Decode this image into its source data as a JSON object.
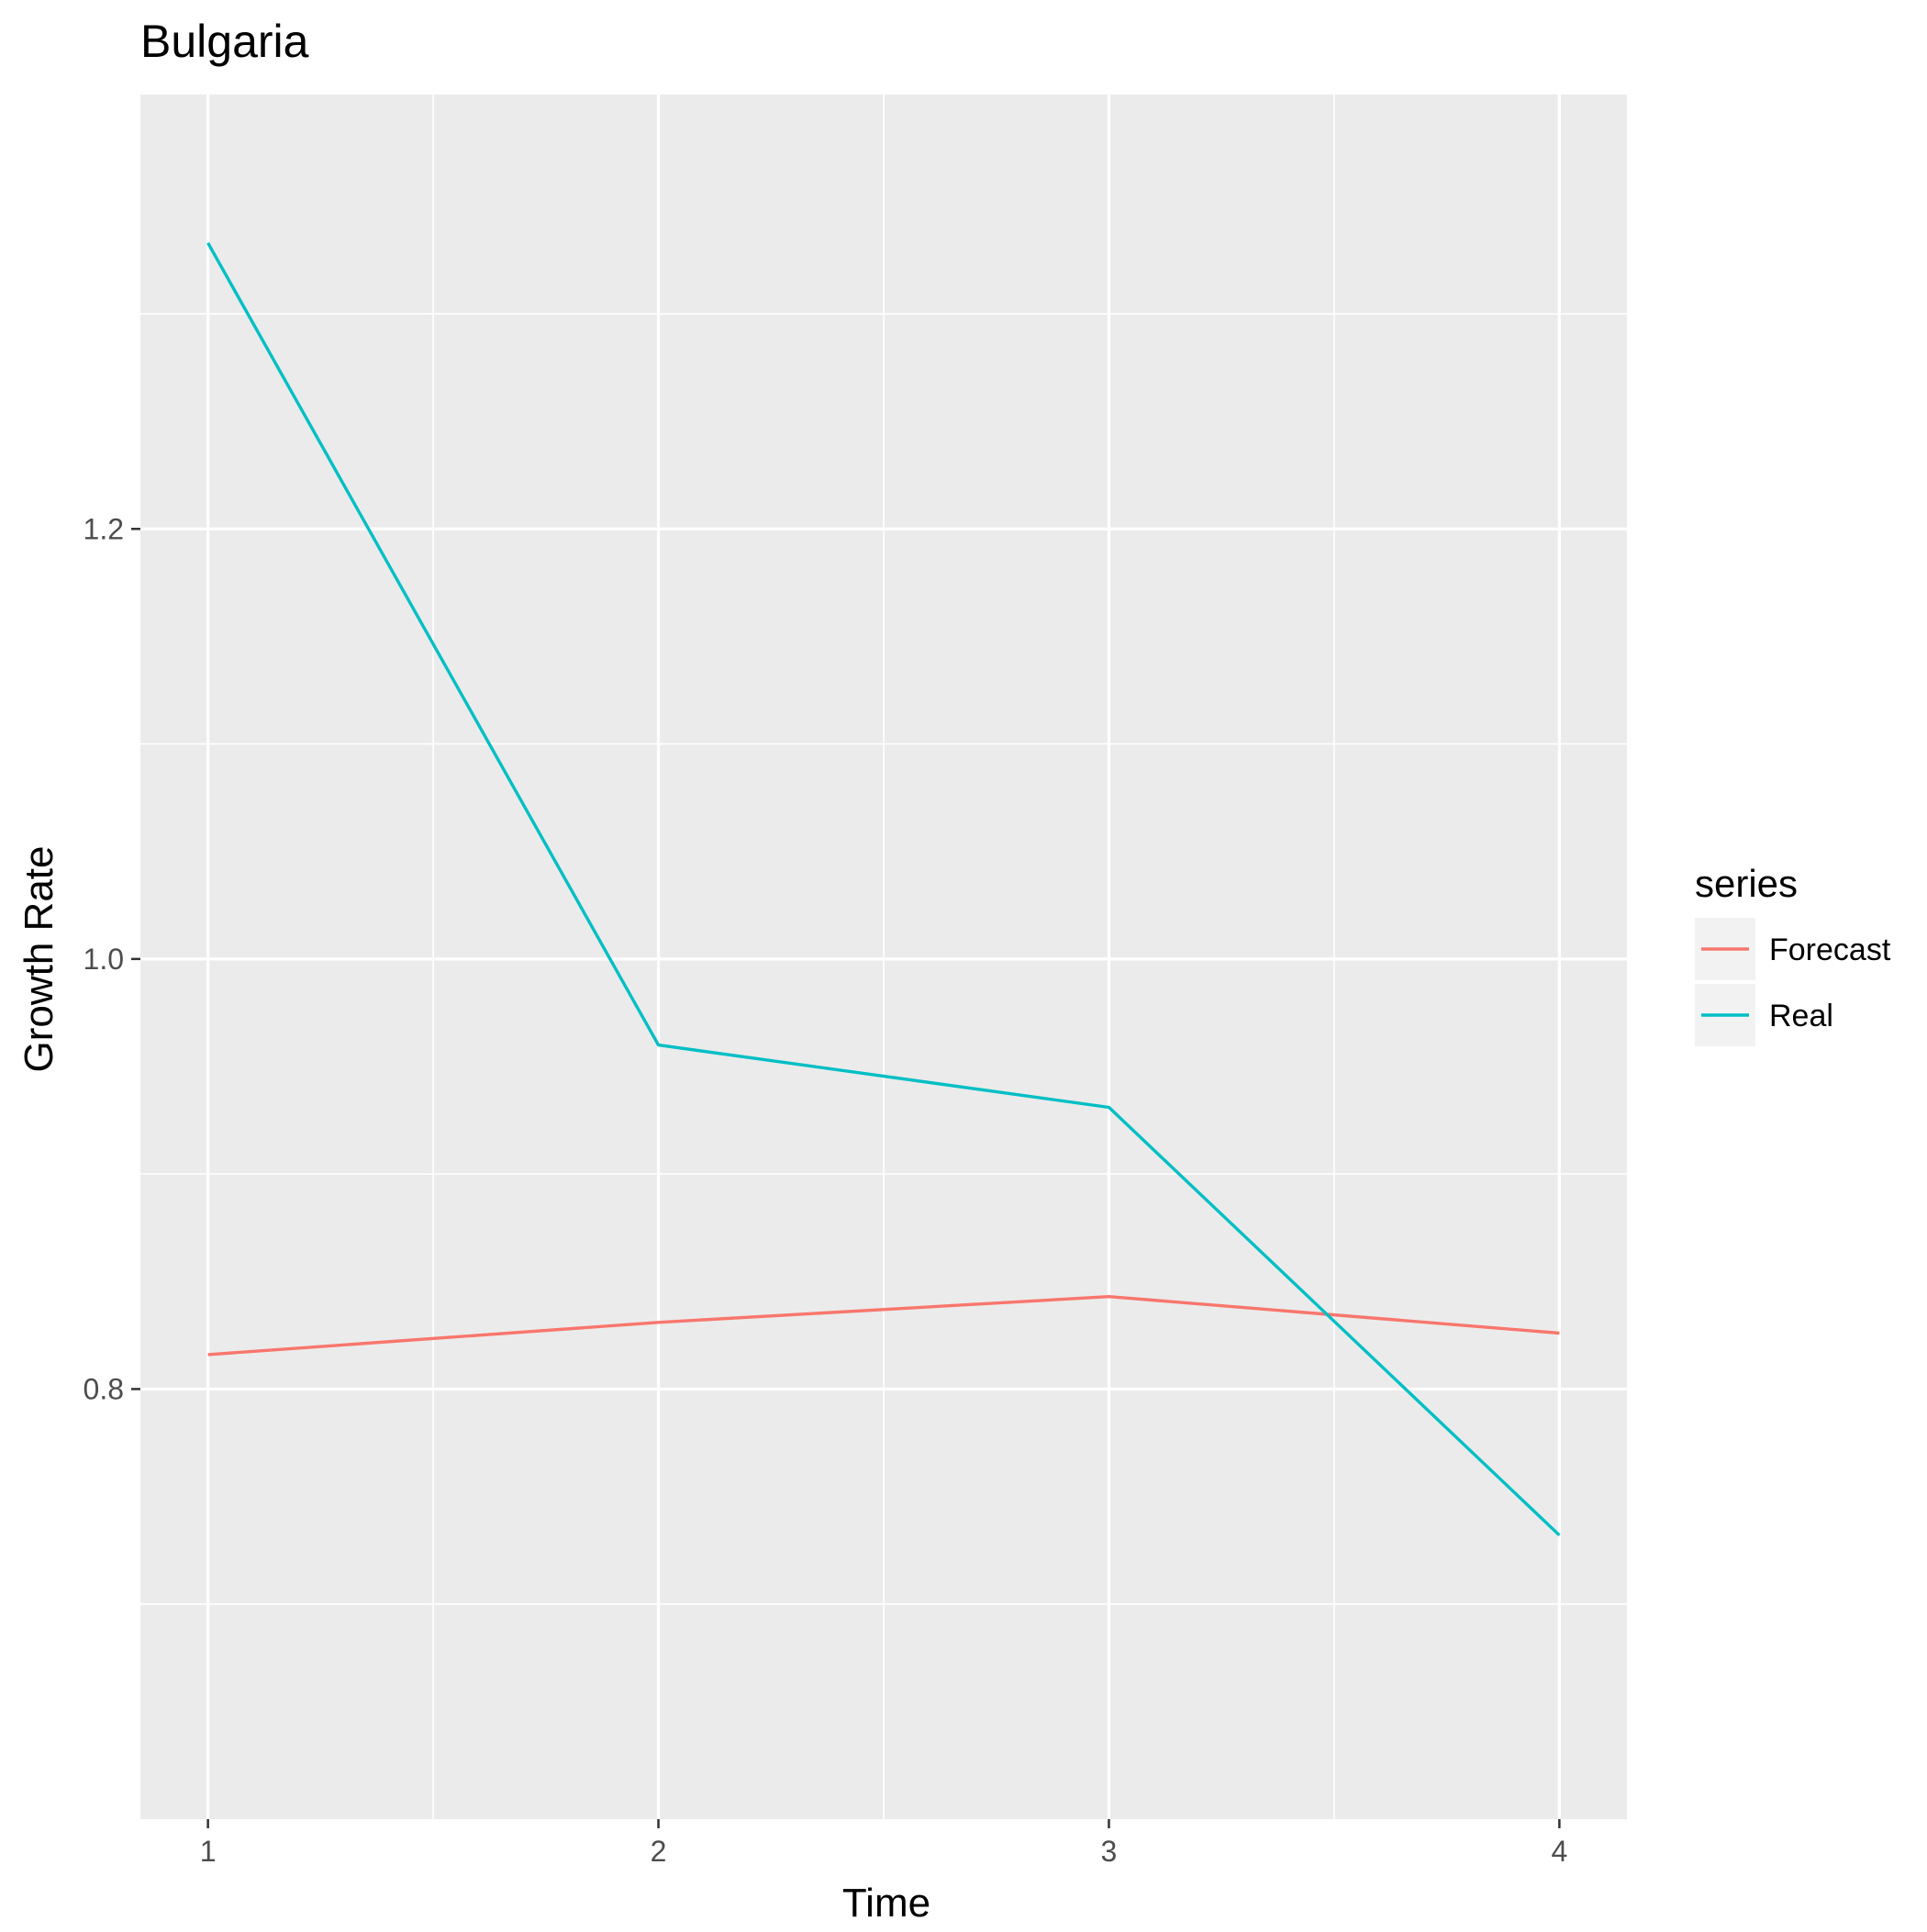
{
  "chart_data": {
    "type": "line",
    "title": "Bulgaria",
    "xlabel": "Time",
    "ylabel": "Growth Rate",
    "x": [
      1,
      2,
      3,
      4
    ],
    "x_ticks": [
      "1",
      "2",
      "3",
      "4"
    ],
    "y_ticks": [
      "0.8",
      "1.0",
      "1.2"
    ],
    "xlim": [
      0.85,
      4.15
    ],
    "ylim": [
      0.6,
      1.402
    ],
    "grid": true,
    "legend": {
      "title": "series",
      "placement": "right"
    },
    "series": [
      {
        "name": "Forecast",
        "color": "#F8766D",
        "values": [
          0.816,
          0.831,
          0.843,
          0.826
        ]
      },
      {
        "name": "Real",
        "color": "#00BFC4",
        "values": [
          1.333,
          0.96,
          0.931,
          0.732
        ]
      }
    ],
    "colors": {
      "panel_background": "#EBEBEB",
      "grid_major": "#FFFFFF",
      "tick_label": "#4D4D4D",
      "legend_key_background": "#F2F2F2"
    }
  }
}
